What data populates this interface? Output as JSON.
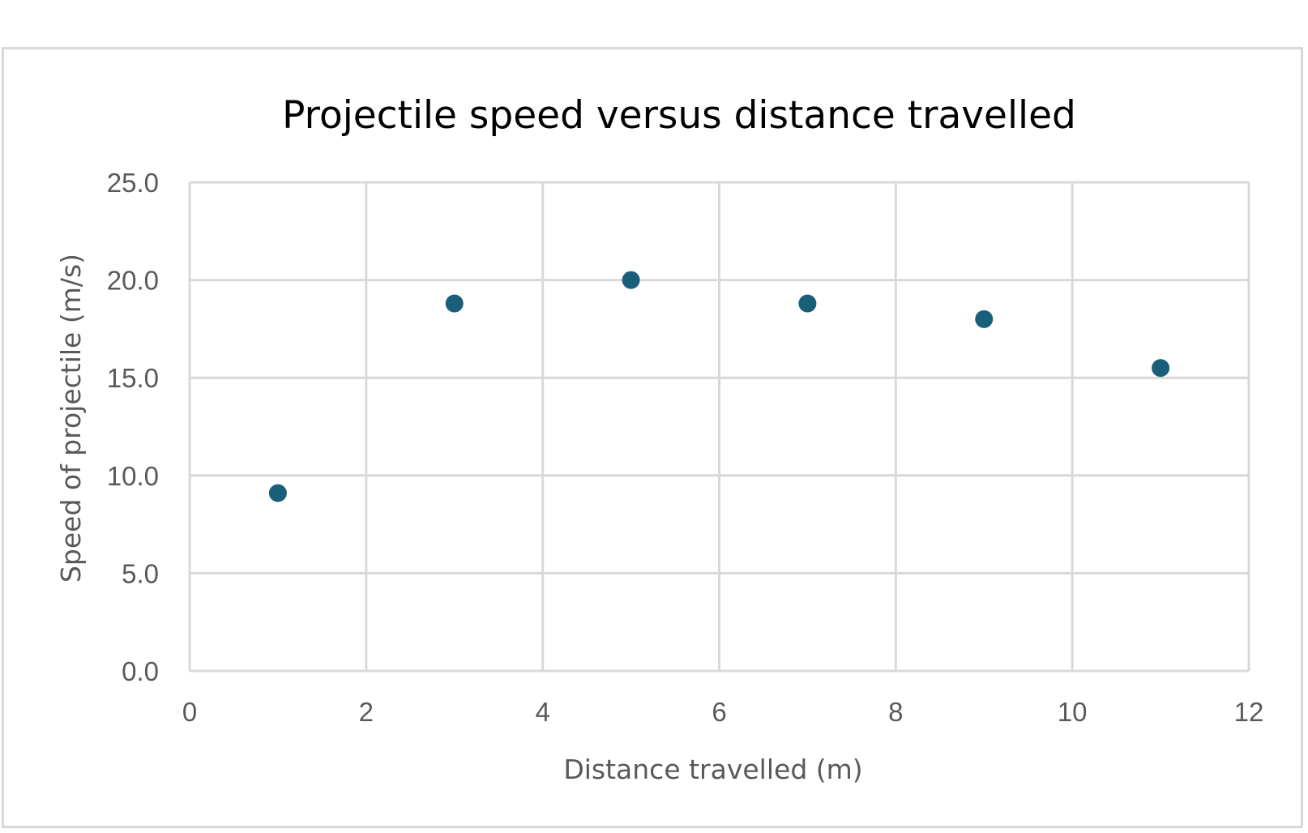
{
  "chart_data": {
    "type": "scatter",
    "title": "Projectile speed versus distance travelled",
    "xlabel": "Distance travelled (m)",
    "ylabel": "Speed of projectile (m/s)",
    "xlim": [
      0,
      12
    ],
    "ylim": [
      0,
      25
    ],
    "x_ticks": [
      "0",
      "2",
      "4",
      "6",
      "8",
      "10",
      "12"
    ],
    "y_ticks": [
      "0.0",
      "5.0",
      "10.0",
      "15.0",
      "20.0",
      "25.0"
    ],
    "grid": true,
    "legend": "none",
    "marker_color": "#1a5f7a",
    "grid_color": "#d9d9d9",
    "points": [
      {
        "x": 1,
        "y": 9.1
      },
      {
        "x": 3,
        "y": 18.8
      },
      {
        "x": 5,
        "y": 20.0
      },
      {
        "x": 7,
        "y": 18.8
      },
      {
        "x": 9,
        "y": 18.0
      },
      {
        "x": 11,
        "y": 15.5
      }
    ]
  }
}
